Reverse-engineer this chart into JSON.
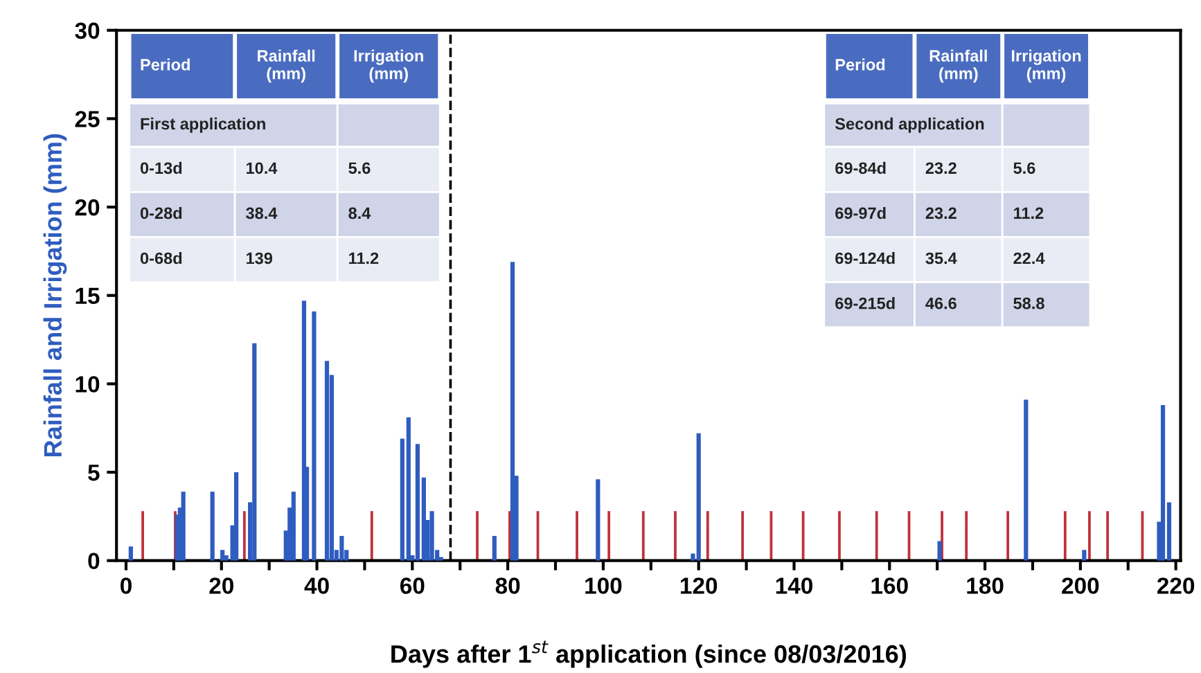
{
  "chart_data": {
    "type": "bar",
    "xlabel": "Days after 1$^{st}$ application (since 08/03/2016)",
    "ylabel": "Rainfall and Irrigation (mm)",
    "series": [
      {
        "color": "#2f5cbf",
        "x": [
          1,
          10.7,
          11.3,
          12,
          14.2,
          18.1,
          20.2,
          21,
          22.3,
          23.1,
          26,
          26.9,
          33.5,
          34.3,
          35.1,
          35.9,
          37.3,
          37.9,
          39.4,
          42.1,
          43.1,
          44.1,
          45.2,
          46.2,
          57.9,
          59.2,
          60,
          61.1,
          62.4,
          63.2,
          64.1,
          65.2,
          66,
          77.2,
          81,
          81.8,
          98.9,
          118.8,
          120,
          170.5,
          188.6,
          200.8,
          202,
          216.5,
          217.3,
          218.6
        ],
        "values": [
          0.8,
          2.6,
          3.0,
          3.9,
          null,
          3.9,
          0.6,
          0.3,
          2.0,
          5.0,
          3.3,
          12.3,
          1.7,
          3.0,
          3.9,
          null,
          14.7,
          5.3,
          14.1,
          11.3,
          10.5,
          0.6,
          1.4,
          0.6,
          6.9,
          8.1,
          0.3,
          6.6,
          4.7,
          2.3,
          2.8,
          0.6,
          0.2,
          1.4,
          16.9,
          4.8,
          4.6,
          0.4,
          7.2,
          1.1,
          9.1,
          0.6,
          null,
          2.2,
          8.8,
          3.3
        ]
      },
      {
        "color": "#c0313a",
        "x": [
          3.5,
          10.3,
          24.8,
          51.5,
          73.6,
          80.4,
          86.3,
          94.5,
          101.2,
          108.4,
          115.1,
          121.9,
          129.2,
          135.2,
          141.9,
          149.5,
          157.3,
          164.1,
          171,
          176.1,
          184.8,
          196.8,
          201.9,
          205.7,
          213
        ],
        "values": [
          2.8,
          2.8,
          2.8,
          2.8,
          2.8,
          2.8,
          2.8,
          2.8,
          2.8,
          2.8,
          2.8,
          2.8,
          2.8,
          2.8,
          2.8,
          2.8,
          2.8,
          2.8,
          2.8,
          2.8,
          2.8,
          2.8,
          2.8,
          2.8,
          2.8
        ]
      }
    ],
    "xlim": [
      -2,
      221
    ],
    "xticks": [
      0,
      {
        "value": 10,
        "label": null
      },
      20,
      {
        "value": 30,
        "label": null
      },
      40,
      {
        "value": 50,
        "label": null
      },
      60,
      {
        "value": 70,
        "label": null
      },
      80,
      {
        "value": 90,
        "label": null
      },
      100,
      {
        "value": 110,
        "label": null
      },
      120,
      {
        "value": 130,
        "label": null
      },
      140,
      {
        "value": 150,
        "label": null
      },
      160,
      {
        "value": 170,
        "label": null
      },
      180,
      {
        "value": 190,
        "label": null
      },
      200,
      {
        "value": 210,
        "label": null
      },
      220
    ],
    "ylim": [
      0,
      30
    ],
    "yticks": [
      0,
      5,
      10,
      15,
      20,
      25,
      30
    ],
    "ref_lines": [
      {
        "axis": "x",
        "value": 68,
        "color": "#000000",
        "line_style": "dashed"
      }
    ],
    "grid": false,
    "annotations": [
      "Period",
      "Rainfall\n(mm)",
      "Irrigation\n(mm)",
      "First application",
      "0-13d",
      "10.4",
      "5.6",
      "0-28d",
      "38.4",
      "8.4",
      "0-68d",
      "139",
      "11.2",
      "Period",
      "Rainfall\n(mm)",
      "Irrigation\n(mm)",
      "Second application",
      "69-84d",
      "23.2",
      "5.6",
      "69-97d",
      "23.2",
      "11.2",
      "69-124d",
      "35.4",
      "22.4",
      "69-215d",
      "46.6",
      "58.8"
    ]
  }
}
